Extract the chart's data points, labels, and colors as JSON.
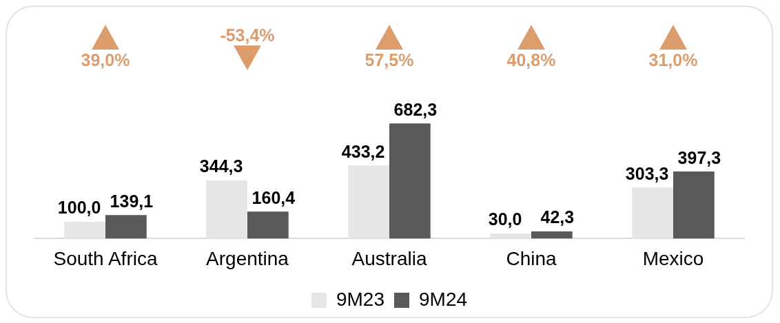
{
  "chart_data": {
    "type": "bar",
    "categories": [
      "South Africa",
      "Argentina",
      "Australia",
      "China",
      "Mexico"
    ],
    "series": [
      {
        "name": "9M23",
        "color": "#e6e6e6",
        "values": [
          100.0,
          344.3,
          433.2,
          30.0,
          303.3
        ],
        "value_labels": [
          "100,0",
          "344,3",
          "433,2",
          "30,0",
          "303,3"
        ]
      },
      {
        "name": "9M24",
        "color": "#595959",
        "values": [
          139.1,
          160.4,
          682.3,
          42.3,
          397.3
        ],
        "value_labels": [
          "139,1",
          "160,4",
          "682,3",
          "42,3",
          "397,3"
        ]
      }
    ],
    "annotations": [
      "39,0%",
      "-53,4%",
      "57,5%",
      "40,8%",
      "31,0%"
    ],
    "legend": "bottom",
    "grid": false
  }
}
